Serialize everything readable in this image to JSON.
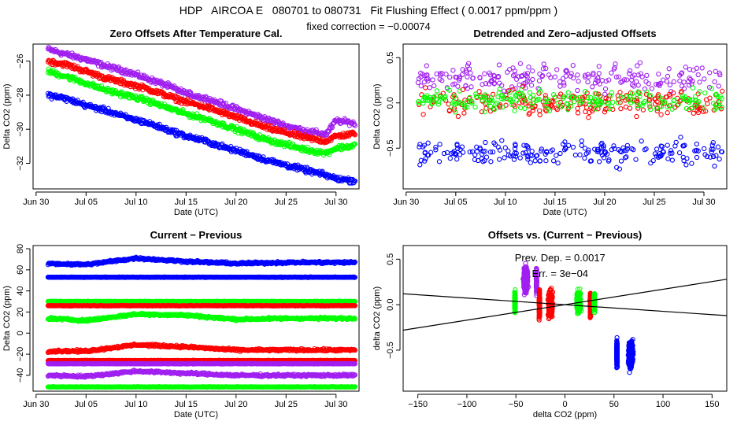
{
  "header": {
    "title": "HDP   AIRCOA E   080701 to 080731   Fit Flushing Effect ( 0.0017 ppm/ppm )",
    "subtitle": "fixed correction = −0.00074"
  },
  "colors": {
    "purple": "#a020f0",
    "red": "#ff0000",
    "green": "#00ff00",
    "blue": "#0000ff",
    "line": "#000000"
  },
  "chart_data": [
    {
      "id": "zero",
      "type": "scatter",
      "title": "Zero Offsets After Temperature Cal.",
      "xlabel": "Date (UTC)",
      "ylabel": "Delta CO2 (ppm)",
      "xlim": [
        -0.3,
        32.3
      ],
      "ylim": [
        -33.5,
        -25.0
      ],
      "xticks": [
        0,
        5,
        10,
        15,
        20,
        25,
        30
      ],
      "xticklabels": [
        "Jun 30",
        "Jul 05",
        "Jul 10",
        "Jul 15",
        "Jul 20",
        "Jul 25",
        "Jul 30"
      ],
      "yticks": [
        -32,
        -30,
        -28,
        -26
      ],
      "yticklabels": [
        "−32",
        "−30",
        "−28",
        "−26"
      ],
      "series": [
        {
          "color": "purple",
          "x": [
            1.2,
            3,
            5,
            7,
            9,
            11,
            13,
            15,
            17,
            19,
            21,
            23,
            25,
            27,
            29,
            30,
            31.5,
            31.9
          ],
          "y": [
            -25.3,
            -25.6,
            -25.9,
            -26.3,
            -26.6,
            -27.0,
            -27.4,
            -27.9,
            -28.2,
            -28.6,
            -29.0,
            -29.4,
            -29.8,
            -30.1,
            -30.3,
            -29.5,
            -29.6,
            -29.7
          ]
        },
        {
          "color": "red",
          "x": [
            1.2,
            3,
            5,
            7,
            9,
            11,
            13,
            15,
            17,
            19,
            21,
            23,
            25,
            27,
            29,
            30,
            31.5,
            31.9
          ],
          "y": [
            -26.0,
            -26.2,
            -26.6,
            -27.0,
            -27.3,
            -27.6,
            -28.0,
            -28.4,
            -28.7,
            -29.1,
            -29.5,
            -29.9,
            -30.2,
            -30.5,
            -30.7,
            -30.4,
            -30.3,
            -30.2
          ]
        },
        {
          "color": "green",
          "x": [
            1.2,
            3,
            5,
            7,
            9,
            11,
            13,
            15,
            17,
            19,
            21,
            23,
            25,
            27,
            29,
            30,
            31.5,
            31.9
          ],
          "y": [
            -26.6,
            -26.9,
            -27.3,
            -27.7,
            -28.0,
            -28.3,
            -28.7,
            -29.1,
            -29.4,
            -29.8,
            -30.2,
            -30.6,
            -30.9,
            -31.2,
            -31.4,
            -31.1,
            -31.0,
            -30.9
          ]
        },
        {
          "color": "blue",
          "x": [
            1.2,
            3,
            5,
            7,
            9,
            11,
            13,
            15,
            17,
            19,
            21,
            23,
            25,
            27,
            29,
            30,
            31.5,
            31.9
          ],
          "y": [
            -28.0,
            -28.2,
            -28.6,
            -28.9,
            -29.3,
            -29.6,
            -30.0,
            -30.4,
            -30.7,
            -31.1,
            -31.4,
            -31.8,
            -32.1,
            -32.4,
            -32.7,
            -32.9,
            -33.0,
            -33.0
          ]
        }
      ]
    },
    {
      "id": "detrended",
      "type": "scatter",
      "title": "Detrended and Zero−adjusted Offsets",
      "xlabel": "Date (UTC)",
      "ylabel": "Delta CO2 (ppm)",
      "xlim": [
        -0.3,
        32.3
      ],
      "ylim": [
        -0.95,
        0.65
      ],
      "xticks": [
        0,
        5,
        10,
        15,
        20,
        25,
        30
      ],
      "xticklabels": [
        "Jun 30",
        "Jul 05",
        "Jul 10",
        "Jul 15",
        "Jul 20",
        "Jul 25",
        "Jul 30"
      ],
      "yticks": [
        -0.5,
        0.0,
        0.5
      ],
      "yticklabels": [
        "−0.5",
        "0.0",
        "0.5"
      ],
      "series": [
        {
          "color": "purple",
          "x": [
            1.2,
            31.9
          ],
          "y_mean": [
            0.28,
            0.28
          ],
          "spread": 0.14
        },
        {
          "color": "red",
          "x": [
            1.2,
            31.9
          ],
          "y_mean": [
            0.0,
            0.0
          ],
          "spread": 0.14
        },
        {
          "color": "green",
          "x": [
            1.2,
            31.9
          ],
          "y_mean": [
            0.03,
            0.03
          ],
          "spread": 0.11
        },
        {
          "color": "blue",
          "x": [
            1.2,
            31.9
          ],
          "y_mean": [
            -0.55,
            -0.55
          ],
          "spread": 0.14
        }
      ]
    },
    {
      "id": "current",
      "type": "scatter",
      "title": "Current − Previous",
      "xlabel": "Date (UTC)",
      "ylabel": "Delta CO2 (ppm)",
      "xlim": [
        -0.3,
        32.3
      ],
      "ylim": [
        -55,
        83
      ],
      "xticks": [
        0,
        5,
        10,
        15,
        20,
        25,
        30
      ],
      "xticklabels": [
        "Jun 30",
        "Jul 05",
        "Jul 10",
        "Jul 15",
        "Jul 20",
        "Jul 25",
        "Jul 30"
      ],
      "yticks": [
        -40,
        -20,
        0,
        20,
        40,
        60,
        80
      ],
      "yticklabels": [
        "−40",
        "−20",
        "0",
        "20",
        "40",
        "60",
        "80"
      ],
      "series": [
        {
          "color": "blue",
          "x": [
            1.2,
            5,
            10,
            15,
            20,
            25,
            31.9
          ],
          "y": [
            66,
            65,
            71,
            68,
            66,
            67,
            67
          ]
        },
        {
          "color": "blue",
          "x": [
            1.2,
            31.9
          ],
          "y": [
            53,
            53
          ]
        },
        {
          "color": "green",
          "x": [
            1.2,
            31.9
          ],
          "y": [
            30,
            30
          ]
        },
        {
          "color": "red",
          "x": [
            1.2,
            31.9
          ],
          "y": [
            26,
            26
          ]
        },
        {
          "color": "green",
          "x": [
            1.2,
            5,
            10,
            15,
            20,
            25,
            31.9
          ],
          "y": [
            14,
            12,
            18,
            17,
            13,
            14,
            14
          ]
        },
        {
          "color": "red",
          "x": [
            1.2,
            5,
            10,
            15,
            20,
            25,
            31.9
          ],
          "y": [
            -17,
            -17,
            -11,
            -13,
            -16,
            -16,
            -16
          ]
        },
        {
          "color": "red",
          "x": [
            1.2,
            31.9
          ],
          "y": [
            -26,
            -26
          ]
        },
        {
          "color": "purple",
          "x": [
            1.2,
            31.9
          ],
          "y": [
            -29,
            -29
          ]
        },
        {
          "color": "purple",
          "x": [
            1.2,
            5,
            10,
            15,
            20,
            25,
            31.9
          ],
          "y": [
            -40,
            -41,
            -36,
            -38,
            -40,
            -40,
            -40
          ]
        },
        {
          "color": "green",
          "x": [
            1.2,
            31.9
          ],
          "y": [
            -51,
            -51
          ]
        }
      ]
    },
    {
      "id": "offsets",
      "type": "scatter",
      "title": "Offsets vs. (Current − Previous)",
      "xlabel": "delta CO2 (ppm)",
      "ylabel": "delta CO2 (ppm)",
      "xlim": [
        -165,
        165
      ],
      "ylim": [
        -0.95,
        0.65
      ],
      "xticks": [
        -150,
        -100,
        -50,
        0,
        50,
        100,
        150
      ],
      "xticklabels": [
        "−150",
        "−100",
        "−50",
        "0",
        "50",
        "100",
        "150"
      ],
      "yticks": [
        -0.5,
        0.0,
        0.5
      ],
      "yticklabels": [
        "−0.5",
        "0.0",
        "0.5"
      ],
      "annotations": [
        "Prev. Dep. =  0.0017",
        "Err. = 3e−04"
      ],
      "fit_lines": [
        {
          "x": [
            -165,
            165
          ],
          "y": [
            -0.28,
            0.28
          ]
        },
        {
          "x": [
            -165,
            165
          ],
          "y": [
            0.12,
            -0.12
          ]
        }
      ],
      "series": [
        {
          "color": "purple",
          "x_center": -40,
          "x_spread": 3,
          "y_center": 0.28,
          "y_spread": 0.14
        },
        {
          "color": "purple",
          "x_center": -29,
          "x_spread": 0.5,
          "y_center": 0.26,
          "y_spread": 0.12
        },
        {
          "color": "red",
          "x_center": -26,
          "x_spread": 0.5,
          "y_center": 0.0,
          "y_spread": 0.14
        },
        {
          "color": "red",
          "x_center": -15,
          "x_spread": 3,
          "y_center": 0.0,
          "y_spread": 0.14
        },
        {
          "color": "red",
          "x_center": 26,
          "x_spread": 0.5,
          "y_center": 0.0,
          "y_spread": 0.12
        },
        {
          "color": "green",
          "x_center": -51,
          "x_spread": 0.5,
          "y_center": 0.03,
          "y_spread": 0.11
        },
        {
          "color": "green",
          "x_center": 14,
          "x_spread": 3,
          "y_center": 0.03,
          "y_spread": 0.11
        },
        {
          "color": "green",
          "x_center": 30,
          "x_spread": 0.5,
          "y_center": 0.03,
          "y_spread": 0.1
        },
        {
          "color": "blue",
          "x_center": 53,
          "x_spread": 0.5,
          "y_center": -0.55,
          "y_spread": 0.14
        },
        {
          "color": "blue",
          "x_center": 67,
          "x_spread": 3,
          "y_center": -0.55,
          "y_spread": 0.14
        }
      ]
    }
  ]
}
